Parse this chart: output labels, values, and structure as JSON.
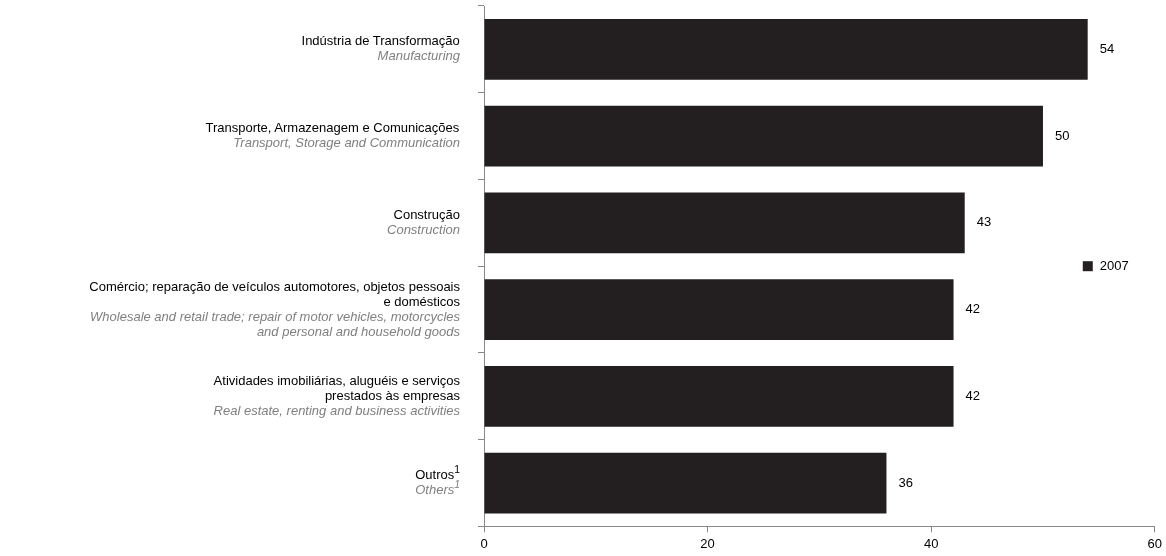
{
  "chart_data": {
    "type": "bar",
    "orientation": "horizontal",
    "categories": [
      "Indústria de Transformação\n\nManufacturing",
      "Transporte, Armazenagem e Comunicações\n\nTransport, Storage and Communication",
      "Construção\n\nConstruction",
      "Comércio; reparação de veículos automotores, objetos pessoais\ne domésticos\n\nWholesale and retail trade; repair of motor vehicles, motorcycles\nand personal and household goods",
      "Atividades imobiliárias, aluguéis e serviços\nprestados às empresas\n\nReal estate, renting and business activities",
      "Outros$^{1}$\n\nOthers$^{1}$"
    ],
    "series": [
      {
        "name": "2007",
        "color": "#231f20",
        "values": [
          54,
          50,
          43,
          42,
          42,
          36
        ]
      }
    ],
    "xlim": [
      0,
      60
    ],
    "xticks": [
      0,
      20,
      40,
      60
    ],
    "grid": false,
    "legend": "right",
    "data_labels": true
  }
}
